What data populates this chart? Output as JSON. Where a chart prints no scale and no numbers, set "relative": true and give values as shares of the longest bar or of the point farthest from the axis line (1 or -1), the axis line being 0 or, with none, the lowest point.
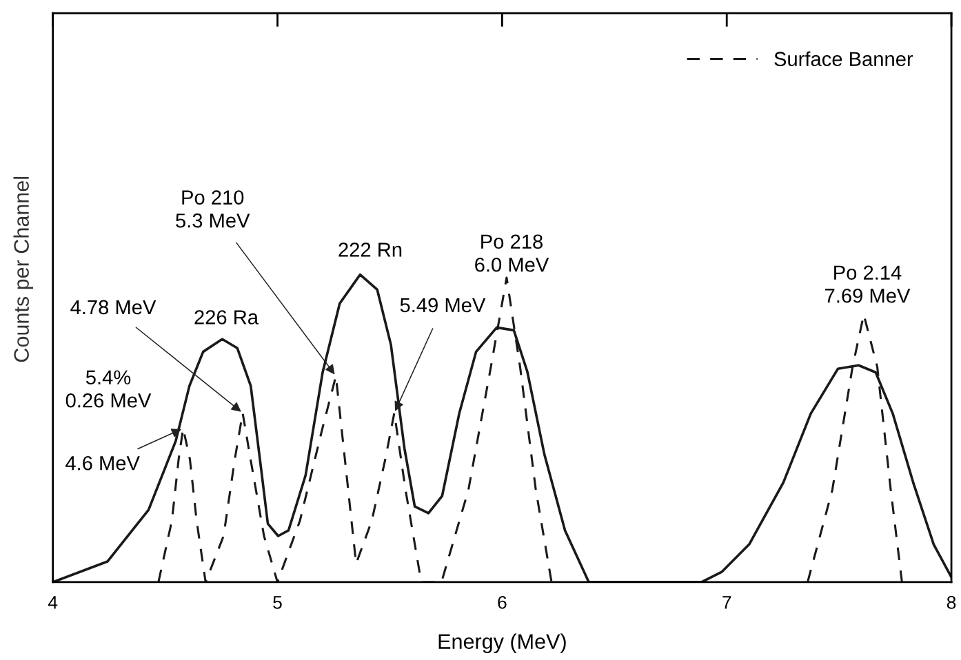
{
  "chart_data": {
    "type": "line",
    "relative": true,
    "xlabel": "Energy (MeV)",
    "ylabel": "Counts per Channel",
    "xlim": [
      4,
      8
    ],
    "xticks": [
      4,
      5,
      6,
      7,
      8
    ],
    "grid": false,
    "legend": "top right",
    "marker": "none",
    "series": [
      {
        "color": "#1a1a1a",
        "line_style": "solid",
        "x": [
          4.0,
          4.243,
          4.426,
          4.547,
          4.608,
          4.669,
          4.754,
          4.821,
          4.881,
          4.927,
          4.957,
          5.003,
          5.049,
          5.125,
          5.201,
          5.277,
          5.368,
          5.444,
          5.505,
          5.565,
          5.611,
          5.672,
          5.733,
          5.809,
          5.884,
          5.976,
          6.052,
          6.112,
          6.188,
          6.28,
          6.386,
          6.888,
          6.979,
          7.1,
          7.252,
          7.374,
          7.495,
          7.587,
          7.663,
          7.739,
          7.83,
          7.921,
          8.0
        ],
        "values": [
          0,
          0.067,
          0.235,
          0.459,
          0.638,
          0.749,
          0.79,
          0.761,
          0.638,
          0.369,
          0.19,
          0.15,
          0.168,
          0.347,
          0.682,
          0.906,
          1.0,
          0.951,
          0.772,
          0.436,
          0.246,
          0.224,
          0.28,
          0.548,
          0.749,
          0.828,
          0.819,
          0.685,
          0.416,
          0.168,
          0,
          0,
          0.034,
          0.123,
          0.324,
          0.548,
          0.694,
          0.705,
          0.682,
          0.548,
          0.324,
          0.123,
          0.016
        ]
      },
      {
        "name": "Surface Banner",
        "color": "#1a1a1a",
        "line_style": "dashed",
        "x": [
          4.47,
          4.53,
          4.56,
          4.58,
          4.61,
          4.64,
          4.68,
          4.76,
          4.81,
          4.845,
          4.88,
          4.94,
          5.0,
          5.1,
          5.2,
          5.26,
          5.3,
          5.35,
          5.42,
          5.48,
          5.52,
          5.57,
          5.64,
          5.73,
          5.85,
          5.95,
          6.02,
          6.08,
          6.15,
          6.22,
          6.8,
          7.36,
          7.47,
          7.56,
          7.61,
          7.67,
          7.73,
          7.78
        ],
        "values": [
          0,
          0.2,
          0.4,
          0.5,
          0.4,
          0.2,
          0,
          0.15,
          0.4,
          0.55,
          0.4,
          0.15,
          0,
          0.2,
          0.5,
          0.67,
          0.4,
          0.06,
          0.2,
          0.4,
          0.55,
          0.3,
          0,
          0,
          0.3,
          0.7,
          0.99,
          0.7,
          0.3,
          0,
          null,
          0,
          0.3,
          0.7,
          0.87,
          0.7,
          0.3,
          0
        ]
      }
    ],
    "annotations": [
      {
        "text": "Po 210\n5.3 MeV",
        "x": 5.26,
        "y": 0.67
      },
      "222 Rn",
      "Po 218\n6.0 MeV",
      "Po 2.14\n7.69 MeV",
      {
        "text": "4.78 MeV",
        "x": 4.845,
        "y": 0.55
      },
      "226 Ra",
      {
        "text": "5.49 MeV",
        "x": 5.52,
        "y": 0.55
      },
      "5.4%\n0.26 MeV",
      {
        "text": "4.6 MeV",
        "x": 4.58,
        "y": 0.5
      }
    ]
  }
}
